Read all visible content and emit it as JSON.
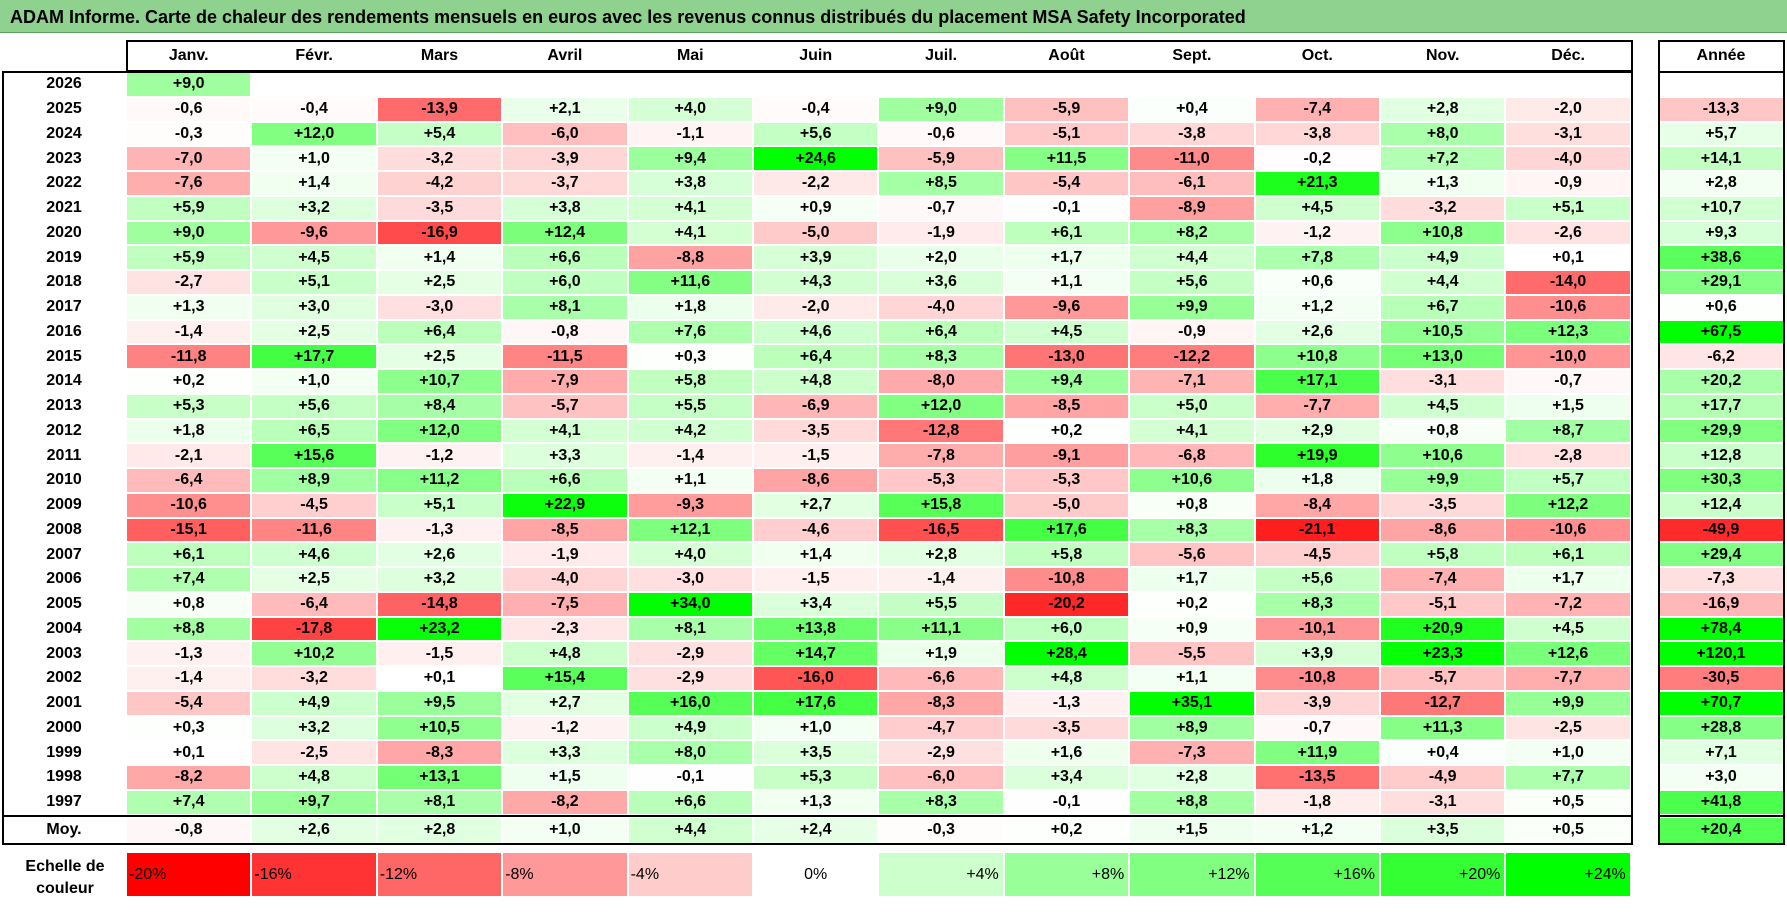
{
  "title": "ADAM Informe. Carte de chaleur des rendements mensuels en euros avec les revenus connus distribués du placement MSA Safety Incorporated",
  "chart_data": {
    "type": "heatmap",
    "title": "ADAM Informe. Carte de chaleur des rendements mensuels en euros avec les revenus connus distribués du placement MSA Safety Incorporated",
    "months": [
      "Janv.",
      "Févr.",
      "Mars",
      "Avril",
      "Mai",
      "Juin",
      "Juil.",
      "Août",
      "Sept.",
      "Oct.",
      "Nov.",
      "Déc."
    ],
    "annual_label": "Année",
    "rows": [
      {
        "year": "2026",
        "values": [
          9.0,
          null,
          null,
          null,
          null,
          null,
          null,
          null,
          null,
          null,
          null,
          null
        ],
        "annual": null
      },
      {
        "year": "2025",
        "values": [
          -0.6,
          -0.4,
          -13.9,
          2.1,
          4.0,
          -0.4,
          9.0,
          -5.9,
          0.4,
          -7.4,
          2.8,
          -2.0
        ],
        "annual": -13.3
      },
      {
        "year": "2024",
        "values": [
          -0.3,
          12.0,
          5.4,
          -6.0,
          -1.1,
          5.6,
          -0.6,
          -5.1,
          -3.8,
          -3.8,
          8.0,
          -3.1
        ],
        "annual": 5.7
      },
      {
        "year": "2023",
        "values": [
          -7.0,
          1.0,
          -3.2,
          -3.9,
          9.4,
          24.6,
          -5.9,
          11.5,
          -11.0,
          -0.2,
          7.2,
          -4.0
        ],
        "annual": 14.1
      },
      {
        "year": "2022",
        "values": [
          -7.6,
          1.4,
          -4.2,
          -3.7,
          3.8,
          -2.2,
          8.5,
          -5.4,
          -6.1,
          21.3,
          1.3,
          -0.9
        ],
        "annual": 2.8
      },
      {
        "year": "2021",
        "values": [
          5.9,
          3.2,
          -3.5,
          3.8,
          4.1,
          0.9,
          -0.7,
          -0.1,
          -8.9,
          4.5,
          -3.2,
          5.1
        ],
        "annual": 10.7
      },
      {
        "year": "2020",
        "values": [
          9.0,
          -9.6,
          -16.9,
          12.4,
          4.1,
          -5.0,
          -1.9,
          6.1,
          8.2,
          -1.2,
          10.8,
          -2.6
        ],
        "annual": 9.3
      },
      {
        "year": "2019",
        "values": [
          5.9,
          4.5,
          1.4,
          6.6,
          -8.8,
          3.9,
          2.0,
          1.7,
          4.4,
          7.8,
          4.9,
          0.1
        ],
        "annual": 38.6
      },
      {
        "year": "2018",
        "values": [
          -2.7,
          5.1,
          2.5,
          6.0,
          11.6,
          4.3,
          3.6,
          1.1,
          5.6,
          0.6,
          4.4,
          -14.0
        ],
        "annual": 29.1
      },
      {
        "year": "2017",
        "values": [
          1.3,
          3.0,
          -3.0,
          8.1,
          1.8,
          -2.0,
          -4.0,
          -9.6,
          9.9,
          1.2,
          6.7,
          -10.6
        ],
        "annual": 0.6
      },
      {
        "year": "2016",
        "values": [
          -1.4,
          2.5,
          6.4,
          -0.8,
          7.6,
          4.6,
          6.4,
          4.5,
          -0.9,
          2.6,
          10.5,
          12.3
        ],
        "annual": 67.5
      },
      {
        "year": "2015",
        "values": [
          -11.8,
          17.7,
          2.5,
          -11.5,
          0.3,
          6.4,
          8.3,
          -13.0,
          -12.2,
          10.8,
          13.0,
          -10.0
        ],
        "annual": -6.2
      },
      {
        "year": "2014",
        "values": [
          0.2,
          1.0,
          10.7,
          -7.9,
          5.8,
          4.8,
          -8.0,
          9.4,
          -7.1,
          17.1,
          -3.1,
          -0.7
        ],
        "annual": 20.2
      },
      {
        "year": "2013",
        "values": [
          5.3,
          5.6,
          8.4,
          -5.7,
          5.5,
          -6.9,
          12.0,
          -8.5,
          5.0,
          -7.7,
          4.5,
          1.5
        ],
        "annual": 17.7
      },
      {
        "year": "2012",
        "values": [
          1.8,
          6.5,
          12.0,
          4.1,
          4.2,
          -3.5,
          -12.8,
          0.2,
          4.1,
          2.9,
          0.8,
          8.7
        ],
        "annual": 29.9
      },
      {
        "year": "2011",
        "values": [
          -2.1,
          15.6,
          -1.2,
          3.3,
          -1.4,
          -1.5,
          -7.8,
          -9.1,
          -6.8,
          19.9,
          10.6,
          -2.8
        ],
        "annual": 12.8
      },
      {
        "year": "2010",
        "values": [
          -6.4,
          8.9,
          11.2,
          6.6,
          1.1,
          -8.6,
          -5.3,
          -5.3,
          10.6,
          1.8,
          9.9,
          5.7
        ],
        "annual": 30.3
      },
      {
        "year": "2009",
        "values": [
          -10.6,
          -4.5,
          5.1,
          22.9,
          -9.3,
          2.7,
          15.8,
          -5.0,
          0.8,
          -8.4,
          -3.5,
          12.2
        ],
        "annual": 12.4
      },
      {
        "year": "2008",
        "values": [
          -15.1,
          -11.6,
          -1.3,
          -8.5,
          12.1,
          -4.6,
          -16.5,
          17.6,
          8.3,
          -21.1,
          -8.6,
          -10.6
        ],
        "annual": -49.9
      },
      {
        "year": "2007",
        "values": [
          6.1,
          4.6,
          2.6,
          -1.9,
          4.0,
          1.4,
          2.8,
          5.8,
          -5.6,
          -4.5,
          5.8,
          6.1
        ],
        "annual": 29.4
      },
      {
        "year": "2006",
        "values": [
          7.4,
          2.5,
          3.2,
          -4.0,
          -3.0,
          -1.5,
          -1.4,
          -10.8,
          1.7,
          5.6,
          -7.4,
          1.7
        ],
        "annual": -7.3
      },
      {
        "year": "2005",
        "values": [
          0.8,
          -6.4,
          -14.8,
          -7.5,
          34.0,
          3.4,
          5.5,
          -20.2,
          0.2,
          8.3,
          -5.1,
          -7.2
        ],
        "annual": -16.9
      },
      {
        "year": "2004",
        "values": [
          8.8,
          -17.8,
          23.2,
          -2.3,
          8.1,
          13.8,
          11.1,
          6.0,
          0.9,
          -10.1,
          20.9,
          4.5
        ],
        "annual": 78.4
      },
      {
        "year": "2003",
        "values": [
          -1.3,
          10.2,
          -1.5,
          4.8,
          -2.9,
          14.7,
          1.9,
          28.4,
          -5.5,
          3.9,
          23.3,
          12.6
        ],
        "annual": 120.1
      },
      {
        "year": "2002",
        "values": [
          -1.4,
          -3.2,
          0.1,
          15.4,
          -2.9,
          -16.0,
          -6.6,
          4.8,
          1.1,
          -10.8,
          -5.7,
          -7.7
        ],
        "annual": -30.5
      },
      {
        "year": "2001",
        "values": [
          -5.4,
          4.9,
          9.5,
          2.7,
          16.0,
          17.6,
          -8.3,
          -1.3,
          35.1,
          -3.9,
          -12.7,
          9.9
        ],
        "annual": 70.7
      },
      {
        "year": "2000",
        "values": [
          0.3,
          3.2,
          10.5,
          -1.2,
          4.9,
          1.0,
          -4.7,
          -3.5,
          8.9,
          -0.7,
          11.3,
          -2.5
        ],
        "annual": 28.8
      },
      {
        "year": "1999",
        "values": [
          0.1,
          -2.5,
          -8.3,
          3.3,
          8.0,
          3.5,
          -2.9,
          1.6,
          -7.3,
          11.9,
          0.4,
          1.0
        ],
        "annual": 7.1
      },
      {
        "year": "1998",
        "values": [
          -8.2,
          4.8,
          13.1,
          1.5,
          -0.1,
          5.3,
          -6.0,
          3.4,
          2.8,
          -13.5,
          -4.9,
          7.7
        ],
        "annual": 3.0
      },
      {
        "year": "1997",
        "values": [
          7.4,
          9.7,
          8.1,
          -8.2,
          6.6,
          1.3,
          8.3,
          -0.1,
          8.8,
          -1.8,
          -3.1,
          0.5
        ],
        "annual": 41.8
      }
    ],
    "average": {
      "label": "Moy.",
      "values": [
        -0.8,
        2.6,
        2.8,
        1.0,
        4.4,
        2.4,
        -0.3,
        0.2,
        1.5,
        1.2,
        3.5,
        0.5
      ],
      "annual": 20.4
    },
    "color_scale": {
      "label": "Echelle de couleur",
      "stops": [
        "-20%",
        "-16%",
        "-12%",
        "-8%",
        "-4%",
        "0%",
        "+4%",
        "+8%",
        "+12%",
        "+16%",
        "+20%",
        "+24%"
      ],
      "colors": [
        "#ff0000",
        "#ff3333",
        "#ff6666",
        "#ff9999",
        "#ffcccc",
        "#ffffff",
        "#ccffcc",
        "#99ff99",
        "#80ff80",
        "#55ff55",
        "#33ff33",
        "#00ff00"
      ]
    }
  }
}
